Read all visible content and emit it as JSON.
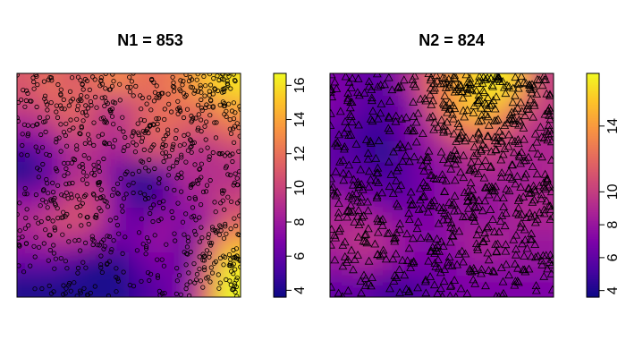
{
  "chart_data": [
    {
      "type": "heatmap",
      "title": "N1 = 853",
      "point_count": 853,
      "marker": "circle",
      "xlim": [
        0,
        1
      ],
      "ylim": [
        0,
        1
      ],
      "colorbar": {
        "range": [
          3.6,
          16.7
        ],
        "ticks": [
          4,
          6,
          8,
          10,
          12,
          14,
          16
        ],
        "labels": [
          "4",
          "6",
          "8",
          "10",
          "12",
          "14",
          "16"
        ],
        "orientation": "vertical"
      },
      "intensity_grid": {
        "rows_top_to_bottom": [
          [
            11,
            12,
            11,
            12,
            13,
            12,
            12,
            13,
            15,
            16
          ],
          [
            10,
            11,
            12,
            10,
            9,
            11,
            12,
            12,
            12,
            14
          ],
          [
            8,
            9,
            11,
            10,
            9,
            11,
            12,
            11,
            11,
            12
          ],
          [
            5,
            7,
            9,
            9,
            8,
            10,
            11,
            9,
            9,
            10
          ],
          [
            4,
            6,
            9,
            9,
            6,
            4,
            6,
            9,
            9,
            9
          ],
          [
            7,
            8,
            10,
            10,
            7,
            4,
            5,
            8,
            9,
            10
          ],
          [
            9,
            10,
            11,
            10,
            7,
            6,
            8,
            7,
            8,
            11
          ],
          [
            8,
            9,
            9,
            8,
            6,
            7,
            8,
            6,
            10,
            14
          ],
          [
            6,
            6,
            5,
            4,
            4,
            6,
            7,
            6,
            11,
            16
          ],
          [
            4,
            4,
            4,
            4,
            4,
            5,
            6,
            7,
            12,
            17
          ]
        ]
      }
    },
    {
      "type": "heatmap",
      "title": "N2 = 824",
      "point_count": 824,
      "marker": "triangle",
      "xlim": [
        0,
        1
      ],
      "ylim": [
        0,
        1
      ],
      "colorbar": {
        "range": [
          3.6,
          17.2
        ],
        "ticks": [
          4,
          6,
          8,
          10,
          14
        ],
        "labels": [
          "4",
          "6",
          "8",
          "10",
          "14"
        ],
        "orientation": "vertical"
      },
      "intensity_grid": {
        "rows_top_to_bottom": [
          [
            7,
            6,
            6,
            9,
            12,
            14,
            16,
            17,
            15,
            10
          ],
          [
            7,
            6,
            5,
            7,
            11,
            14,
            16,
            15,
            12,
            10
          ],
          [
            6,
            5,
            5,
            7,
            9,
            12,
            13,
            12,
            10,
            9
          ],
          [
            6,
            5,
            4,
            6,
            8,
            9,
            10,
            10,
            9,
            9
          ],
          [
            6,
            6,
            5,
            6,
            7,
            8,
            9,
            9,
            8,
            9
          ],
          [
            8,
            7,
            6,
            6,
            7,
            8,
            8,
            8,
            9,
            9
          ],
          [
            9,
            9,
            8,
            7,
            7,
            8,
            8,
            8,
            9,
            9
          ],
          [
            9,
            10,
            9,
            8,
            7,
            8,
            9,
            9,
            8,
            8
          ],
          [
            8,
            9,
            8,
            7,
            7,
            7,
            8,
            8,
            8,
            8
          ],
          [
            6,
            6,
            5,
            5,
            6,
            7,
            7,
            7,
            7,
            7
          ]
        ]
      }
    }
  ]
}
